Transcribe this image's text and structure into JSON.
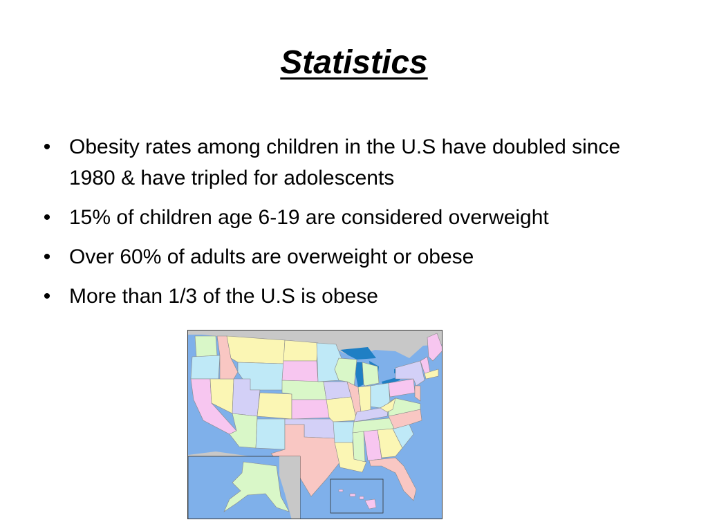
{
  "slide": {
    "title": "Statistics",
    "bullets": [
      "Obesity rates among children in the U.S have doubled since 1980 & have tripled for adolescents",
      "15% of children age 6-19 are considered overweight",
      "Over 60% of adults are overweight or obese",
      "More than 1/3 of the U.S is obese"
    ],
    "bullet_glyph": "•"
  },
  "map": {
    "colors": {
      "water": "#7fb0ea",
      "land_outside": "#c8c8c8",
      "lakes": "#1f7fc4",
      "state_green": "#d9f7c8",
      "state_pink": "#f7c6f0",
      "state_yellow": "#fbf6b4",
      "state_blue": "#bfe9f7",
      "state_lavender": "#d3d0f7",
      "state_red": "#f9c7c3",
      "borders": "#888888"
    }
  }
}
